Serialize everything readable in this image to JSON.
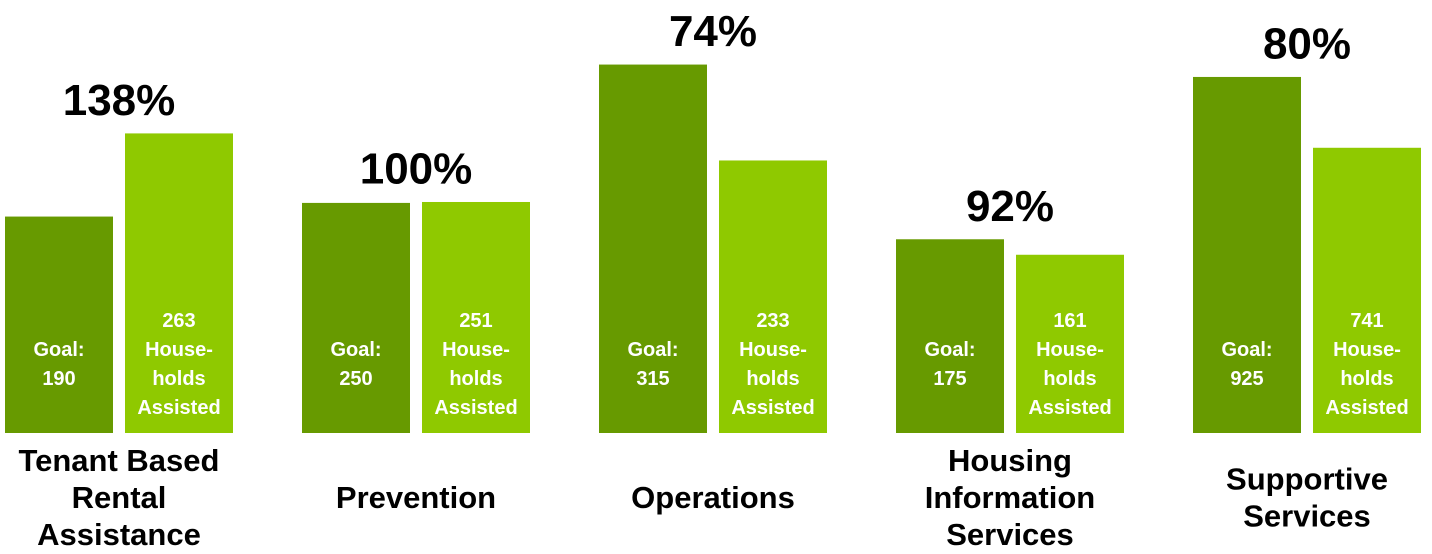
{
  "chart_data": [
    {
      "type": "bar",
      "annotation": "138%",
      "categories": [
        [
          "Tenant Based",
          "Rental",
          "Assistance"
        ]
      ],
      "ylim": [
        0,
        345
      ],
      "series": [
        {
          "color": "#679a00",
          "values": [
            190
          ],
          "value_labels": [
            [
              "Goal:",
              "190"
            ]
          ]
        },
        {
          "color": "#8fc900",
          "values": [
            263
          ],
          "value_labels": [
            [
              "263",
              "House-",
              "holds",
              "Assisted"
            ]
          ]
        }
      ]
    },
    {
      "type": "bar",
      "annotation": "100%",
      "categories": [
        [
          "Prevention"
        ]
      ],
      "ylim": [
        0,
        427
      ],
      "series": [
        {
          "color": "#679a00",
          "values": [
            250
          ],
          "value_labels": [
            [
              "Goal:",
              "250"
            ]
          ]
        },
        {
          "color": "#8fc900",
          "values": [
            251
          ],
          "value_labels": [
            [
              "251",
              "House-",
              "holds",
              "Assisted"
            ]
          ]
        }
      ]
    },
    {
      "type": "bar",
      "annotation": "74%",
      "categories": [
        [
          "Operations"
        ]
      ],
      "ylim": [
        0,
        336
      ],
      "series": [
        {
          "color": "#679a00",
          "values": [
            315
          ],
          "value_labels": [
            [
              "Goal:",
              "315"
            ]
          ]
        },
        {
          "color": "#8fc900",
          "values": [
            233
          ],
          "value_labels": [
            [
              "233",
              "House-",
              "holds",
              "Assisted"
            ]
          ]
        }
      ]
    },
    {
      "type": "bar",
      "annotation": "92%",
      "categories": [
        [
          "Housing",
          "Information",
          "Services"
        ]
      ],
      "ylim": [
        0,
        355
      ],
      "series": [
        {
          "color": "#679a00",
          "values": [
            175
          ],
          "value_labels": [
            [
              "Goal:",
              "175"
            ]
          ]
        },
        {
          "color": "#8fc900",
          "values": [
            161
          ],
          "value_labels": [
            [
              "161",
              "House-",
              "holds",
              "Assisted"
            ]
          ]
        }
      ]
    },
    {
      "type": "bar",
      "annotation": "80%",
      "categories": [
        [
          "Supportive",
          "Services"
        ]
      ],
      "ylim": [
        0,
        1021
      ],
      "series": [
        {
          "color": "#679a00",
          "values": [
            925
          ],
          "value_labels": [
            [
              "Goal:",
              "925"
            ]
          ]
        },
        {
          "color": "#8fc900",
          "values": [
            741
          ],
          "value_labels": [
            [
              "741",
              "House-",
              "holds",
              "Assisted"
            ]
          ]
        }
      ]
    }
  ]
}
